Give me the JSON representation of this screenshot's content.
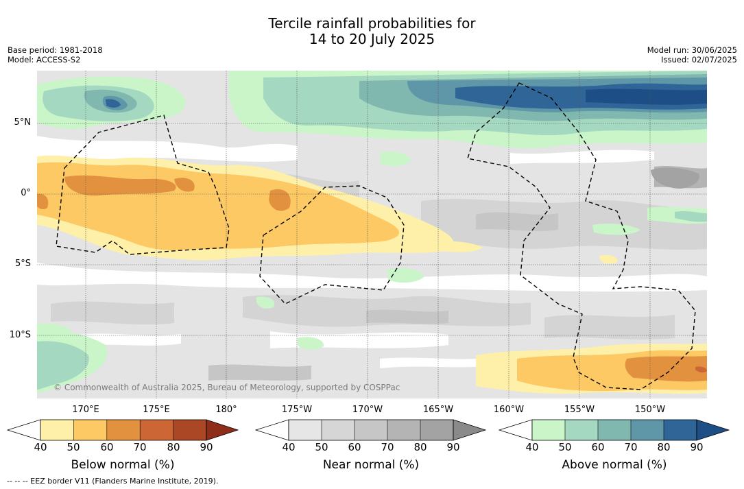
{
  "title_line1": "Tercile rainfall probabilities for",
  "title_line2": "14 to 20 July 2025",
  "meta_left": {
    "base_period": "Base period: 1981-2018",
    "model": "Model: ACCESS-S2"
  },
  "meta_right": {
    "model_run": "Model run: 30/06/2025",
    "issued": "Issued: 02/07/2025"
  },
  "lat_ticks": [
    "5°N",
    "0°",
    "5°S",
    "10°S"
  ],
  "lon_ticks_top_row": [
    "170°E",
    "175°E",
    "180°",
    "175°W",
    "170°W",
    "165°W",
    "160°W",
    "155°W",
    "150°W"
  ],
  "copyright": "© Commonwealth of Australia 2025, Bureau of Meteorology, supported by COSPPac",
  "footnote": "-- -- -- EEZ border V11 (Flanders Marine Institute, 2019).",
  "colorbars": [
    {
      "label": "Below normal (%)",
      "ticks": [
        "40",
        "50",
        "60",
        "70",
        "80",
        "90"
      ],
      "colors": [
        "#fef0a8",
        "#fdc965",
        "#e2923e",
        "#cc6635",
        "#ab4725",
        "#8e2d1a"
      ]
    },
    {
      "label": "Near normal (%)",
      "ticks": [
        "40",
        "50",
        "60",
        "70",
        "80",
        "90"
      ],
      "colors": [
        "#e6e6e6",
        "#d6d6d6",
        "#c6c6c6",
        "#b4b4b4",
        "#a3a3a3",
        "#8a8a8a"
      ]
    },
    {
      "label": "Above normal (%)",
      "ticks": [
        "40",
        "50",
        "60",
        "70",
        "80",
        "90"
      ],
      "colors": [
        "#c9f5c9",
        "#a5d8c0",
        "#80b8b0",
        "#5f97a8",
        "#2f6697",
        "#1d4f86"
      ]
    }
  ]
}
